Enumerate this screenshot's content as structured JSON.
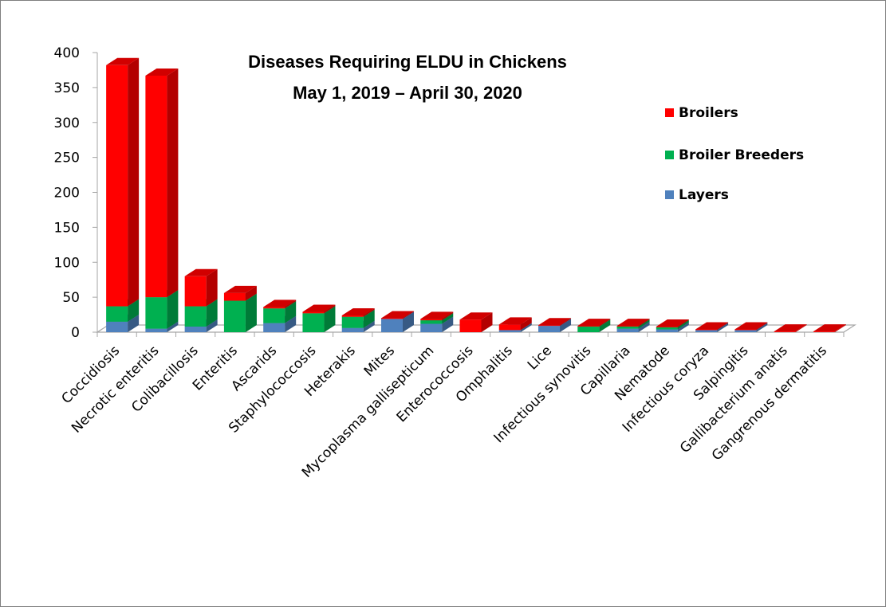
{
  "chart_data": {
    "type": "bar",
    "stacked": true,
    "three_d": true,
    "title": "Diseases Requiring ELDU in Chickens",
    "subtitle": "May 1, 2019 – April 30, 2020",
    "xlabel": "",
    "ylabel": "",
    "ylim": [
      0,
      400
    ],
    "yticks": [
      0,
      50,
      100,
      150,
      200,
      250,
      300,
      350,
      400
    ],
    "grid": false,
    "legend_position": "right",
    "categories": [
      "Coccidiosis",
      "Necrotic enteritis",
      "Colibacillosis",
      "Enteritis",
      "Ascarids",
      "Staphylococcosis",
      "Heterakis",
      "Mites",
      "Mycoplasma gallisepticum",
      "Enterococcosis",
      "Omphalitis",
      "Lice",
      "Infectious synovitis",
      "Capillaria",
      "Nematode",
      "Infectious coryza",
      "Salpingitis",
      "Gallibacterium anatis",
      "Gangrenous dermatitis"
    ],
    "series": [
      {
        "name": "Layers",
        "color": "#4f81bd",
        "values": [
          15,
          5,
          8,
          0,
          13,
          0,
          6,
          19,
          12,
          0,
          3,
          9,
          0,
          5,
          4,
          3,
          3,
          0,
          0
        ]
      },
      {
        "name": "Broiler Breeders",
        "color": "#00b050",
        "values": [
          22,
          45,
          29,
          45,
          21,
          27,
          16,
          0,
          5,
          0,
          0,
          0,
          8,
          3,
          3,
          0,
          0,
          0,
          0
        ]
      },
      {
        "name": "Broilers",
        "color": "#ff0000",
        "values": [
          345,
          317,
          43,
          11,
          2,
          2,
          2,
          1,
          2,
          18,
          8,
          1,
          1,
          1,
          1,
          1,
          1,
          1,
          1
        ]
      }
    ],
    "legend_order": [
      "Broilers",
      "Broiler Breeders",
      "Layers"
    ]
  }
}
